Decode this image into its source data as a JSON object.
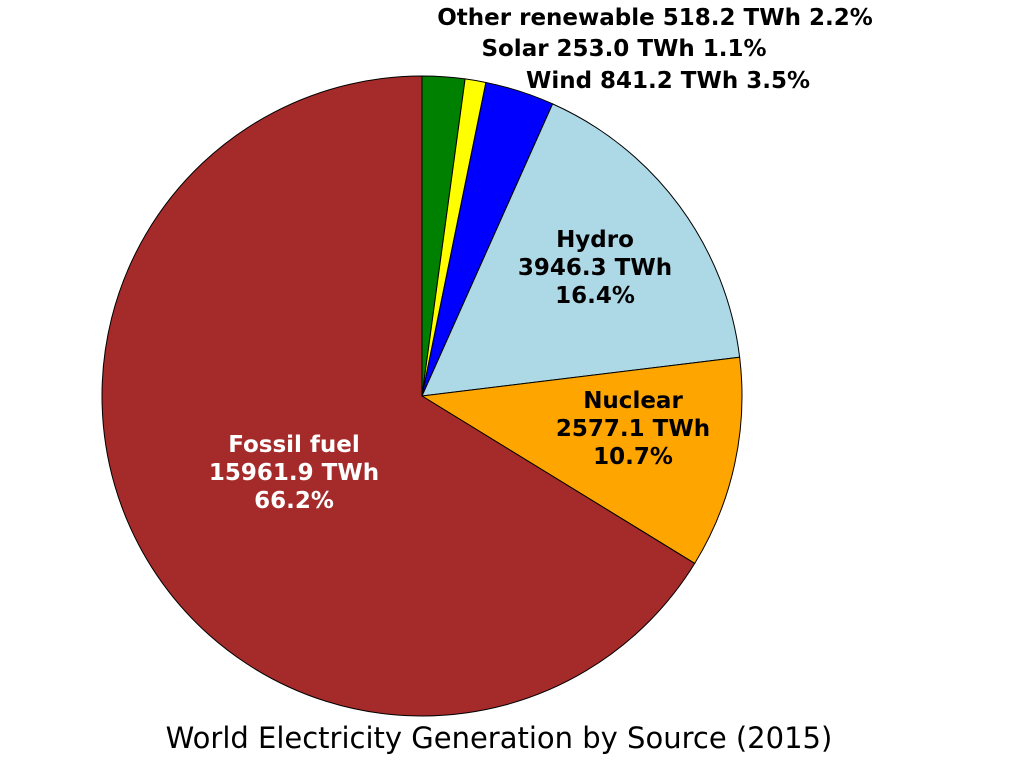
{
  "chart_data": {
    "type": "pie",
    "title": "World Electricity Generation by Source (2015)",
    "unit": "TWh",
    "start_angle_deg": 90,
    "direction": "clockwise",
    "slices": [
      {
        "name": "Other renewable",
        "value": 518.2,
        "percent": "2.2%",
        "color": "#008000",
        "value_text": "518.2 TWh",
        "label_placement": "outside"
      },
      {
        "name": "Solar",
        "value": 253.0,
        "percent": "1.1%",
        "color": "#ffff00",
        "value_text": "253.0 TWh",
        "label_placement": "outside"
      },
      {
        "name": "Wind",
        "value": 841.2,
        "percent": "3.5%",
        "color": "#0000ff",
        "value_text": "841.2 TWh",
        "label_placement": "outside"
      },
      {
        "name": "Hydro",
        "value": 3946.3,
        "percent": "16.4%",
        "color": "#add8e6",
        "value_text": "3946.3 TWh",
        "label_placement": "inside",
        "label_color": "#000000"
      },
      {
        "name": "Nuclear",
        "value": 2577.1,
        "percent": "10.7%",
        "color": "#ffa500",
        "value_text": "2577.1 TWh",
        "label_placement": "inside",
        "label_color": "#000000"
      },
      {
        "name": "Fossil fuel",
        "value": 15961.9,
        "percent": "66.2%",
        "color": "#a52a2a",
        "value_text": "15961.9 TWh",
        "label_placement": "inside",
        "label_color": "#ffffff"
      }
    ]
  }
}
